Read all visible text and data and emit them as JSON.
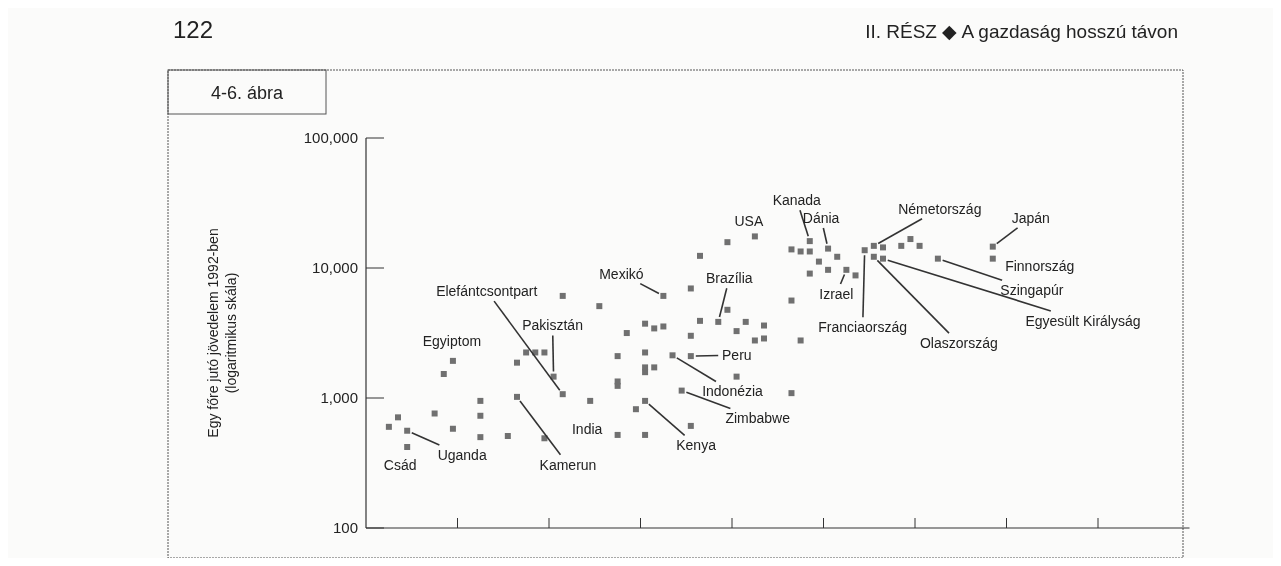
{
  "chart_data": {
    "type": "scatter",
    "title": "4-6. ábra",
    "ylabel": "Egy főre jutó jövedelem 1992-ben\n(logaritmikus skála)",
    "log": true,
    "grid": false,
    "marker": "square",
    "categories": [
      null,
      null,
      null,
      null,
      null,
      null,
      null,
      null,
      null,
      null,
      null,
      null,
      null,
      null,
      null,
      null,
      null,
      null,
      null,
      null,
      null,
      null,
      null,
      null,
      null,
      null,
      null,
      null,
      null,
      null,
      null,
      null,
      null,
      null,
      null,
      null,
      null,
      null,
      null,
      null,
      null,
      null,
      null,
      null,
      null,
      null,
      null,
      null,
      null,
      null,
      null,
      null,
      null,
      null,
      null,
      null,
      null,
      null,
      null,
      null,
      null,
      null,
      null,
      null,
      null,
      null,
      null,
      null,
      null,
      null,
      null,
      null,
      null,
      null,
      null,
      null,
      null,
      null,
      null,
      null,
      null,
      null,
      null,
      null,
      null,
      null,
      null,
      null,
      null,
      null
    ],
    "ylim": [
      100,
      100000
    ],
    "yticks": [
      {
        "value": 100,
        "label": "100"
      },
      {
        "value": 1000,
        "label": "1,000"
      },
      {
        "value": 10000,
        "label": "10,000"
      },
      {
        "value": 100000,
        "label": "100,000"
      }
    ],
    "series": [
      {
        "color": "#707070",
        "values": [
          null,
          null,
          600,
          710,
          560,
          null,
          null,
          760,
          1530,
          1930,
          null,
          null,
          950,
          null,
          null,
          510,
          1870,
          2240,
          2240,
          2240,
          1460,
          6100,
          null,
          null,
          950,
          5090,
          null,
          2100,
          3160,
          820,
          3730,
          3430,
          6100,
          2130,
          1140,
          6960,
          12400,
          null,
          3850,
          15800,
          3270,
          3850,
          17500,
          3610,
          null,
          null,
          5620,
          2770,
          16100,
          11200,
          14100,
          12200,
          9680,
          8770,
          13700,
          14800,
          14400,
          null,
          14800,
          16700,
          14800,
          null,
          11800,
          null,
          null,
          null,
          null,
          null,
          14600,
          null,
          null,
          null,
          null,
          null,
          null,
          null,
          null,
          null,
          null,
          null,
          null,
          null,
          null,
          null,
          null,
          null,
          null,
          null,
          null,
          null
        ]
      },
      {
        "color": "#707070",
        "values": [
          null,
          null,
          null,
          null,
          420,
          null,
          null,
          null,
          null,
          580,
          null,
          null,
          730,
          null,
          null,
          null,
          1020,
          null,
          null,
          490,
          null,
          1070,
          null,
          null,
          null,
          null,
          null,
          1340,
          null,
          null,
          2240,
          1720,
          3550,
          null,
          null,
          3010,
          3920,
          null,
          null,
          4770,
          1460,
          null,
          2770,
          2870,
          null,
          null,
          1090,
          13400,
          13400,
          null,
          9680,
          null,
          null,
          null,
          null,
          12200,
          11800,
          null,
          null,
          null,
          null,
          null,
          null,
          null,
          null,
          null,
          null,
          null,
          11800,
          null,
          null,
          null,
          null,
          null,
          null,
          null,
          null,
          null,
          null,
          null,
          null,
          null,
          null,
          null,
          null,
          null,
          null,
          null,
          null,
          null
        ]
      },
      {
        "color": "#707070",
        "values": [
          null,
          null,
          null,
          null,
          null,
          null,
          null,
          null,
          null,
          null,
          null,
          null,
          500,
          null,
          null,
          null,
          null,
          null,
          null,
          null,
          null,
          null,
          null,
          null,
          null,
          null,
          null,
          1240,
          null,
          null,
          1720,
          null,
          null,
          null,
          null,
          2100,
          null,
          null,
          null,
          null,
          null,
          null,
          null,
          null,
          null,
          null,
          13900,
          null,
          9060,
          null,
          null,
          null,
          null,
          null,
          null,
          null,
          null,
          null,
          null,
          null,
          null,
          null,
          null,
          null,
          null,
          null,
          null,
          null,
          null,
          null,
          null,
          null,
          null,
          null,
          null,
          null,
          null,
          null,
          null,
          null,
          null,
          null,
          null,
          null,
          null,
          null,
          null,
          null,
          null,
          null
        ]
      },
      {
        "color": "#707070",
        "values": [
          null,
          null,
          null,
          null,
          null,
          null,
          null,
          null,
          null,
          null,
          null,
          null,
          null,
          null,
          null,
          null,
          null,
          null,
          null,
          null,
          null,
          null,
          null,
          null,
          null,
          null,
          null,
          520,
          null,
          null,
          1580,
          null,
          null,
          null,
          null,
          610,
          null,
          null,
          null,
          null,
          null,
          null,
          null,
          null,
          null,
          null,
          null,
          null,
          null,
          null,
          null,
          null,
          null,
          null,
          null,
          null,
          null,
          null,
          null,
          null,
          null,
          null,
          null,
          null,
          null,
          null,
          null,
          null,
          null,
          null,
          null,
          null,
          null,
          null,
          null,
          null,
          null,
          null,
          null,
          null,
          null,
          null,
          null,
          null,
          null,
          null,
          null,
          null,
          null,
          null
        ]
      },
      {
        "color": "#707070",
        "values": [
          null,
          null,
          null,
          null,
          null,
          null,
          null,
          null,
          null,
          null,
          null,
          null,
          null,
          null,
          null,
          null,
          null,
          null,
          null,
          null,
          null,
          null,
          null,
          null,
          null,
          null,
          null,
          null,
          null,
          null,
          950,
          null,
          null,
          null,
          null,
          null,
          null,
          null,
          null,
          null,
          null,
          null,
          null,
          null,
          null,
          null,
          null,
          null,
          null,
          null,
          null,
          null,
          null,
          null,
          null,
          null,
          null,
          null,
          null,
          null,
          null,
          null,
          null,
          null,
          null,
          null,
          null,
          null,
          null,
          null,
          null,
          null,
          null,
          null,
          null,
          null,
          null,
          null,
          null,
          null,
          null,
          null,
          null,
          null,
          null,
          null,
          null,
          null,
          null,
          null
        ]
      },
      {
        "color": "#707070",
        "values": [
          null,
          null,
          null,
          null,
          null,
          null,
          null,
          null,
          null,
          null,
          null,
          null,
          null,
          null,
          null,
          null,
          null,
          null,
          null,
          null,
          null,
          null,
          null,
          null,
          null,
          null,
          null,
          null,
          null,
          null,
          520,
          null,
          null,
          null,
          null,
          null,
          null,
          null,
          null,
          null,
          null,
          null,
          null,
          null,
          null,
          null,
          null,
          null,
          null,
          null,
          null,
          null,
          null,
          null,
          null,
          null,
          null,
          null,
          null,
          null,
          null,
          null,
          null,
          null,
          null,
          null,
          null,
          null,
          null,
          null,
          null,
          null,
          null,
          null,
          null,
          null,
          null,
          null,
          null,
          null,
          null,
          null,
          null,
          null,
          null,
          null,
          null,
          null,
          null,
          null
        ]
      }
    ],
    "annotations": [
      "122",
      "II. RÉSZ ◆ A gazdaság hosszú távon",
      "USA",
      "Kanada",
      "Dánia",
      "Németország",
      "Japán",
      "Finnország",
      "Szingapúr",
      "Egyesült Királyság",
      "Olaszország",
      "Franciaország",
      "Izrael",
      "Mexikó",
      "Brazília",
      "Peru",
      "Indonézia",
      "Zimbabwe",
      "Kenya",
      "India",
      "Kamerun",
      "Pakisztán",
      "Elefántcsontpart",
      "Egyiptom",
      "Uganda",
      "Csád"
    ]
  }
}
